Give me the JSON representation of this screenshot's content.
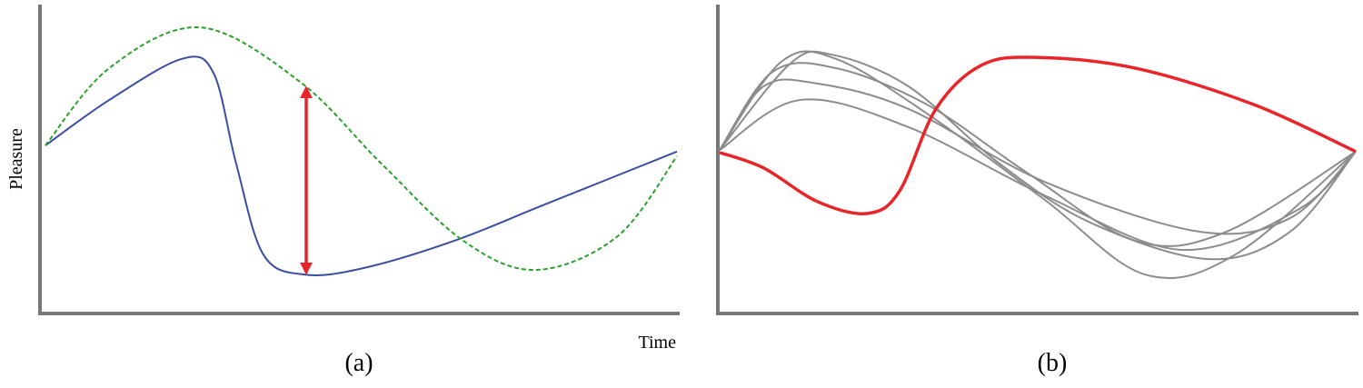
{
  "chart_data": [
    {
      "type": "line",
      "caption": "(a)",
      "ylabel": "Pleasure",
      "xlabel": "Time",
      "xlim": [
        0,
        10
      ],
      "ylim": [
        0,
        100
      ],
      "series": [
        {
          "color": "#3a4fa0",
          "dashed": false,
          "x": [
            0,
            1.01,
            2.16,
            2.66,
            3.02,
            3.45,
            4.1,
            5.04,
            6.47,
            7.91,
            10
          ],
          "values": [
            54.4,
            69.1,
            82.4,
            77.9,
            48.5,
            19.1,
            12.6,
            14.7,
            23.5,
            35.3,
            52.4
          ]
        },
        {
          "color": "#2ca02c",
          "dashed": true,
          "x": [
            0,
            1.01,
            2.45,
            4.03,
            5.32,
            6.62,
            7.77,
            9.06,
            10
          ],
          "values": [
            54.4,
            79.4,
            92.6,
            75,
            48.5,
            23.5,
            14.1,
            25,
            50.9
          ]
        }
      ]
    },
    {
      "type": "line",
      "caption": "(b)",
      "xlim": [
        0,
        10
      ],
      "ylim": [
        0,
        100
      ],
      "series": [
        {
          "color": "#8c8c8c",
          "x": [
            0,
            0.97,
            1.83,
            3.26,
            5.11,
            6.69,
            8.11,
            10
          ],
          "values": [
            52.9,
            81.5,
            82.4,
            64.7,
            36.8,
            12.6,
            19.1,
            52.4
          ]
        },
        {
          "color": "#8c8c8c",
          "x": [
            0,
            1.11,
            1.76,
            2.97,
            4.4,
            5.83,
            7.69,
            8.97,
            10
          ],
          "values": [
            52.9,
            80.9,
            83.8,
            73.5,
            48.5,
            29.4,
            17.6,
            26.5,
            52.4
          ]
        },
        {
          "color": "#8c8c8c",
          "x": [
            0,
            0.83,
            1.83,
            3.26,
            4.83,
            6.54,
            7.97,
            10
          ],
          "values": [
            52.9,
            78.2,
            79.4,
            67.6,
            45.6,
            23.5,
            26.5,
            52.4
          ]
        },
        {
          "color": "#8c8c8c",
          "x": [
            0,
            0.69,
            1.54,
            2.97,
            5.11,
            7.54,
            8.97,
            10
          ],
          "values": [
            52.9,
            73.5,
            74.4,
            66.2,
            42.6,
            26.5,
            30.9,
            52.4
          ]
        },
        {
          "color": "#8c8c8c",
          "x": [
            0,
            1.26,
            2.97,
            5.11,
            7.26,
            9.11,
            10
          ],
          "values": [
            52.9,
            69.1,
            60.3,
            38.2,
            20.6,
            33.8,
            52.4
          ]
        },
        {
          "color": "#e8262a",
          "width": 3.5,
          "x": [
            0,
            0.69,
            1.54,
            2.33,
            2.83,
            3.4,
            4.11,
            4.97,
            6.54,
            8.4,
            10
          ],
          "values": [
            52.1,
            47.1,
            36.2,
            32.4,
            39.7,
            66.2,
            80.3,
            82.9,
            79.4,
            67.6,
            52.4
          ]
        }
      ]
    }
  ]
}
